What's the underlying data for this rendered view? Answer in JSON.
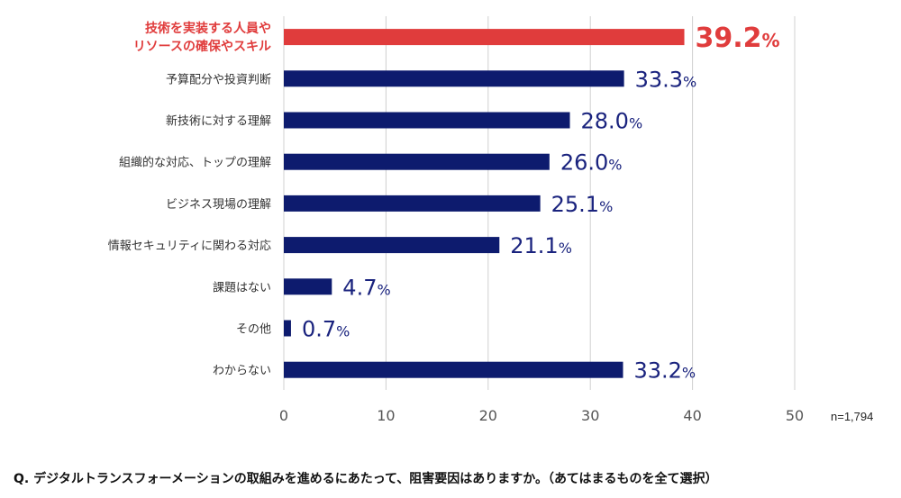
{
  "chart_data": {
    "type": "bar",
    "orientation": "horizontal",
    "categories": [
      [
        "技術を実装する人員や",
        "リソースの確保やスキル"
      ],
      [
        "予算配分や投資判断"
      ],
      [
        "新技術に対する理解"
      ],
      [
        "組織的な対応、トップの理解"
      ],
      [
        "ビジネス現場の理解"
      ],
      [
        "情報セキュリティに関わる対応"
      ],
      [
        "課題はない"
      ],
      [
        "その他"
      ],
      [
        "わからない"
      ]
    ],
    "values": [
      39.2,
      33.3,
      28.0,
      26.0,
      25.1,
      21.1,
      4.7,
      0.7,
      33.2
    ],
    "value_labels": [
      "39.2",
      "33.3",
      "28.0",
      "26.0",
      "25.1",
      "21.1",
      "4.7",
      "0.7",
      "33.2"
    ],
    "value_unit": "%",
    "highlight_index": 0,
    "xlim": [
      0,
      50
    ],
    "xticks": [
      "0",
      "10",
      "20",
      "30",
      "40",
      "50"
    ],
    "grid": true,
    "colors": {
      "bar": "#0d1b6e",
      "highlight": "#e03c3c",
      "grid": "#d0d0d0"
    }
  },
  "sample_size": "n=1,794",
  "question": "Q. デジタルトランスフォーメーションの取組みを進めるにあたって、阻害要因はありますか。（あてはまるものを全て選択）"
}
